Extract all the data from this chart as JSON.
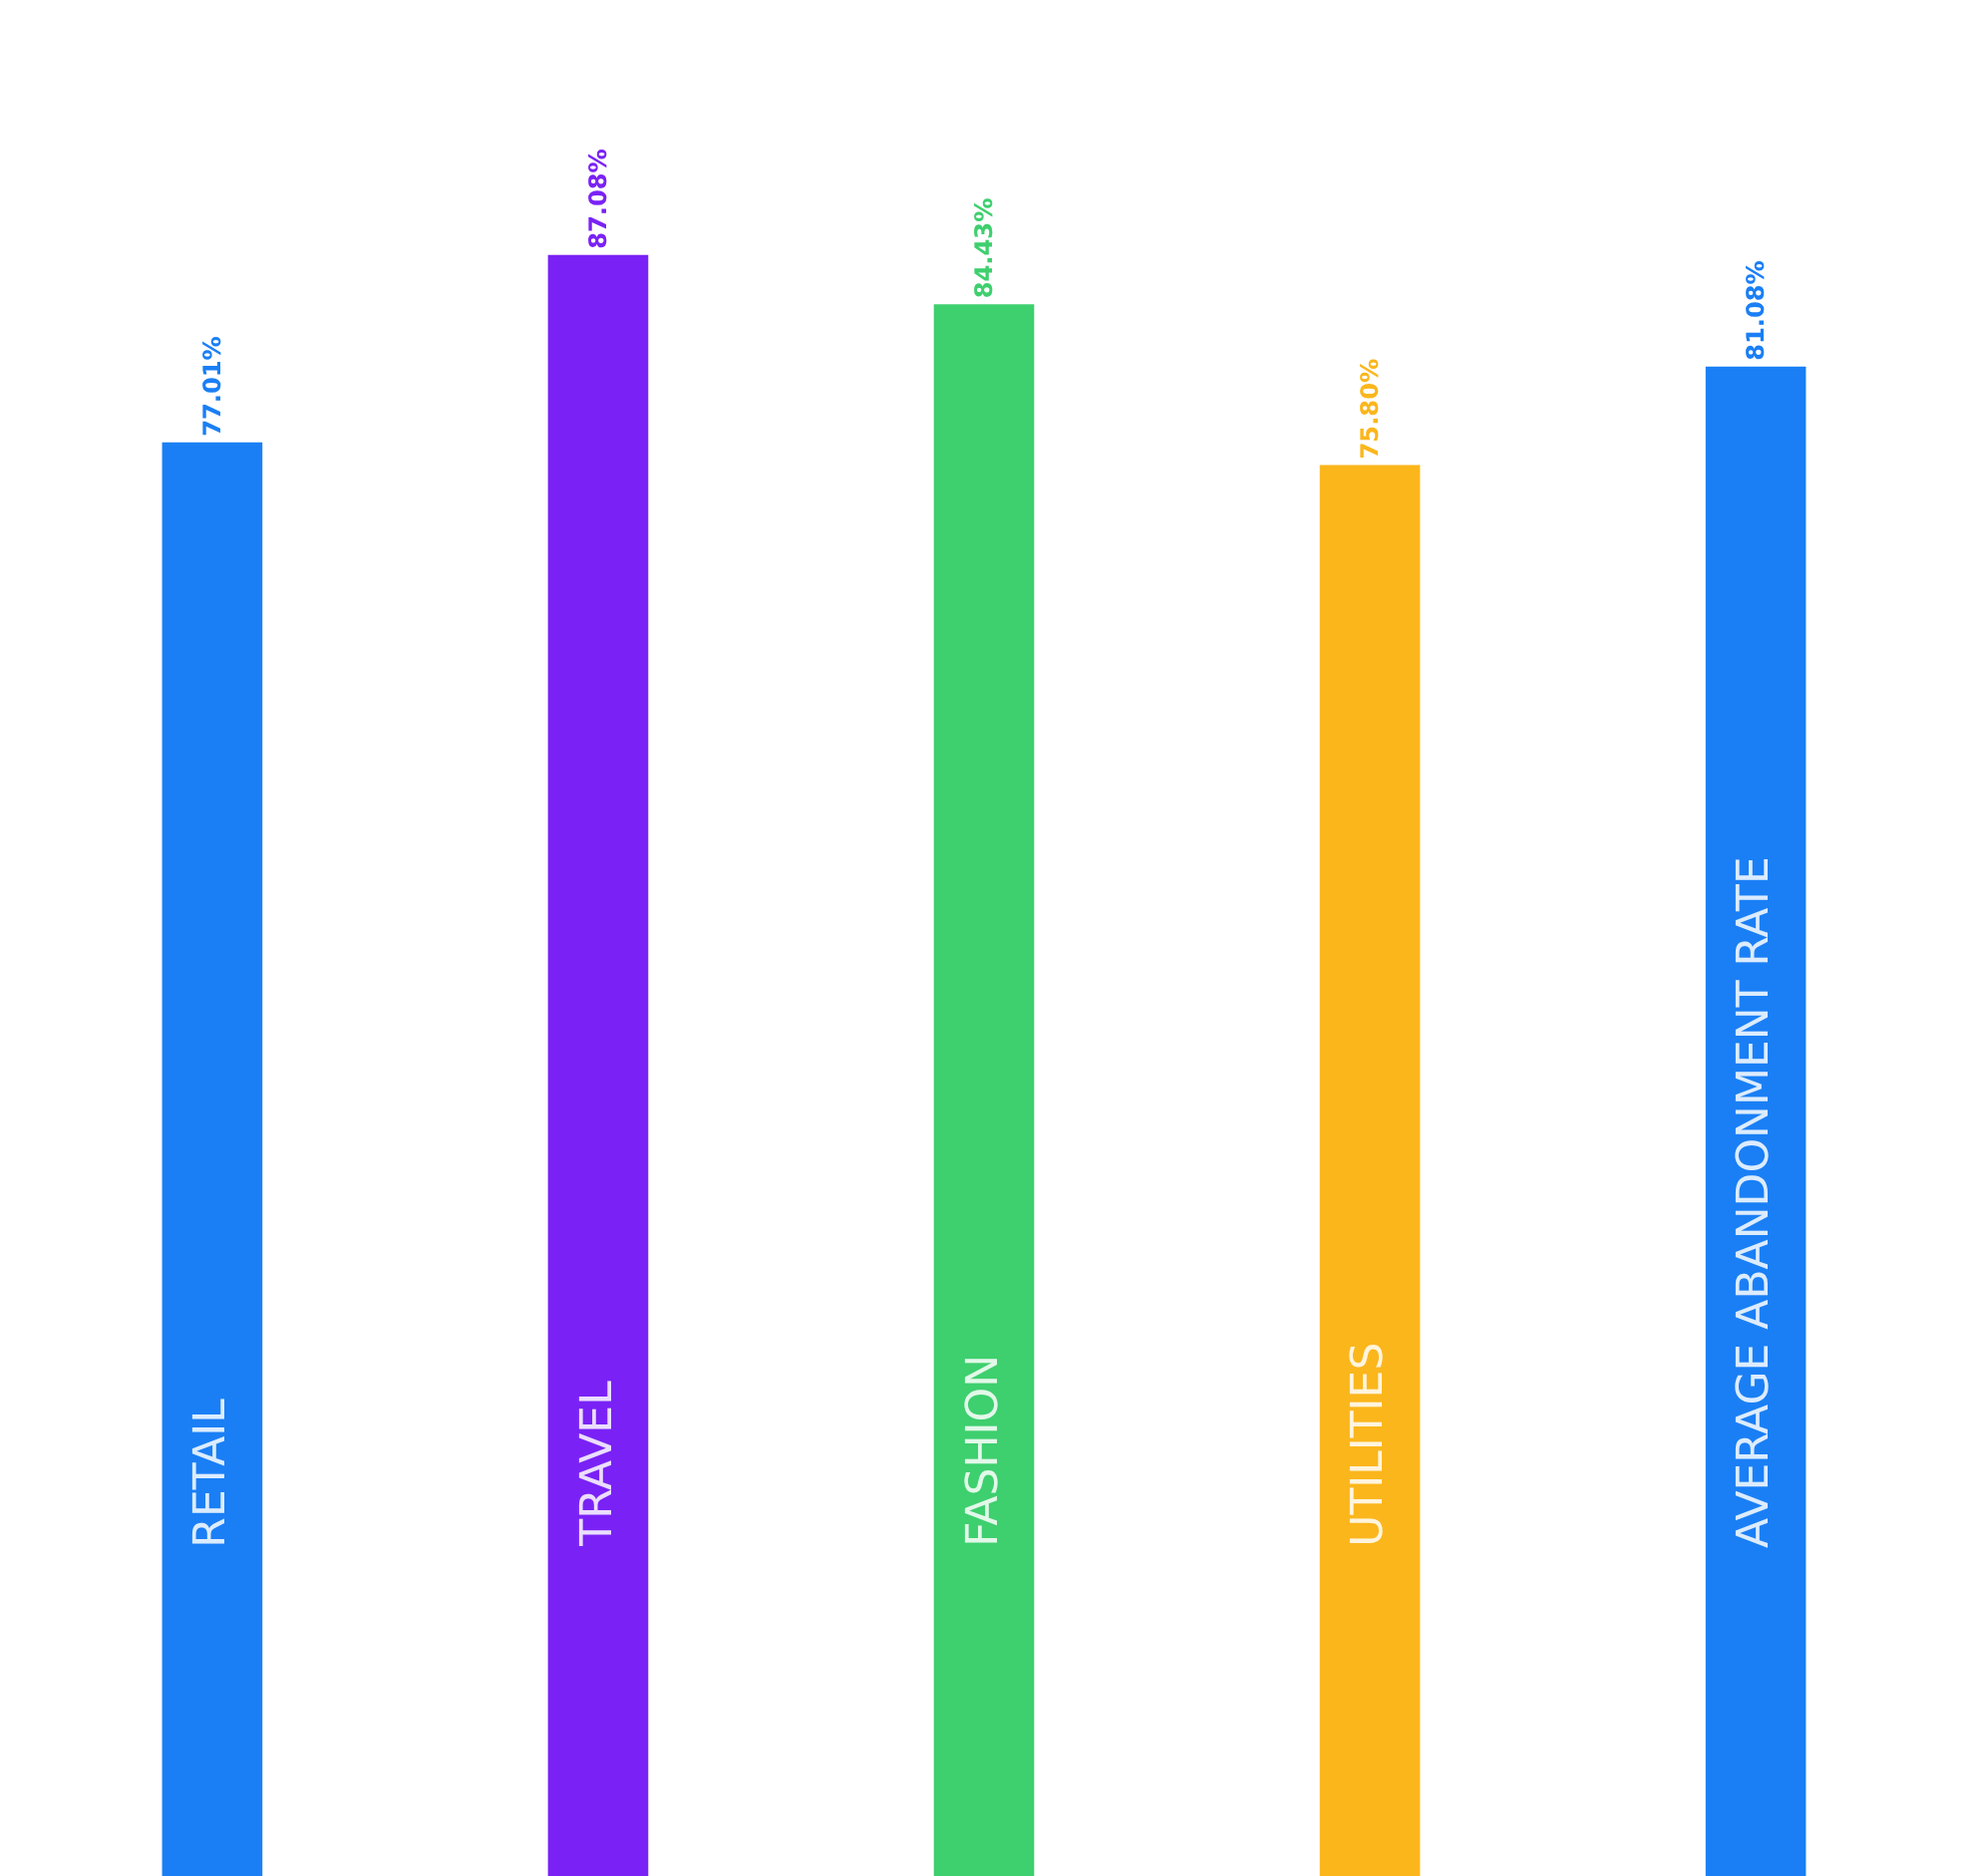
{
  "chart_data": {
    "type": "bar",
    "categories": [
      "RETAIL",
      "TRAVEL",
      "FASHION",
      "UTILITIES",
      "AVERAGE ABANDONMENT RATE"
    ],
    "values": [
      77.01,
      87.08,
      84.43,
      75.8,
      81.08
    ],
    "colors": [
      "#1a7ff5",
      "#7a22f5",
      "#3ecf6e",
      "#fbb61c",
      "#1a7ff5"
    ],
    "value_labels": [
      "77.01%",
      "87.08%",
      "84.43%",
      "75.80%",
      "81.08%"
    ],
    "tick_labels": false
  }
}
